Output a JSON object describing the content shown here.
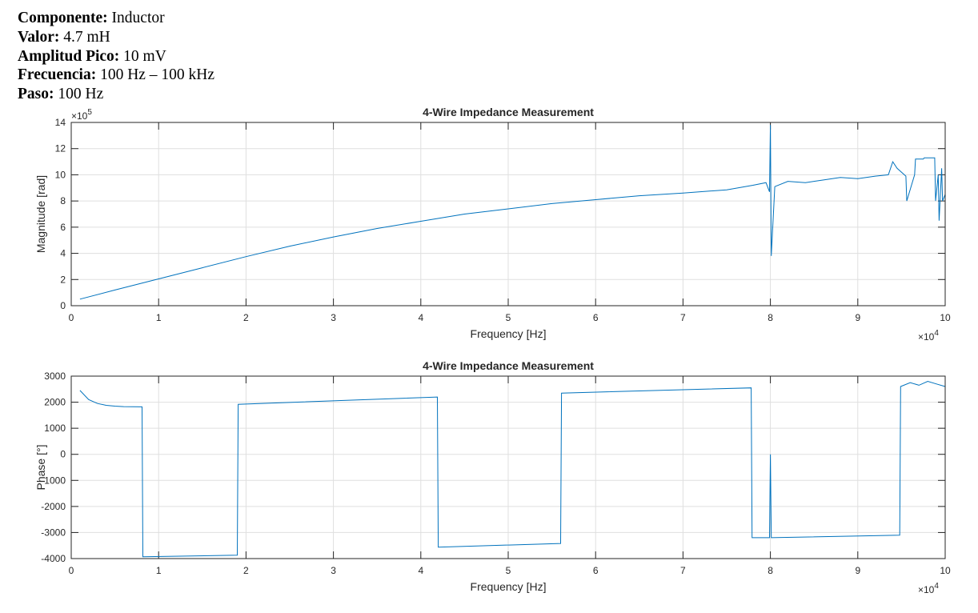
{
  "header": {
    "rows": [
      {
        "label": "Componente:",
        "value": "Inductor"
      },
      {
        "label": "Valor:",
        "value": "4.7 mH"
      },
      {
        "label": "Amplitud Pico:",
        "value": "10 mV"
      },
      {
        "label": "Frecuencia:",
        "value": "100 Hz – 100 kHz"
      },
      {
        "label": "Paso:",
        "value": "100 Hz"
      }
    ]
  },
  "chart_data": [
    {
      "type": "line",
      "title": "4-Wire Impedance Measurement",
      "xlabel": "Frequency [Hz]",
      "ylabel": "Magnitude [rad]",
      "x_multiplier": "×10",
      "x_multiplier_exp": "4",
      "y_multiplier": "×10",
      "y_multiplier_exp": "5",
      "xlim": [
        0,
        100000
      ],
      "ylim": [
        0,
        1400000
      ],
      "xticks": [
        0,
        10000,
        20000,
        30000,
        40000,
        50000,
        60000,
        70000,
        80000,
        90000,
        100000
      ],
      "xtick_labels": [
        "0",
        "1",
        "2",
        "3",
        "4",
        "5",
        "6",
        "7",
        "8",
        "9",
        "10"
      ],
      "yticks": [
        0,
        200000,
        400000,
        600000,
        800000,
        1000000,
        1200000,
        1400000
      ],
      "ytick_labels": [
        "0",
        "2",
        "4",
        "6",
        "8",
        "10",
        "12",
        "14"
      ],
      "grid": true,
      "color": "#0072BD",
      "series": [
        {
          "x": [
            1000,
            5000,
            10000,
            15000,
            20000,
            25000,
            30000,
            35000,
            40000,
            45000,
            50000,
            55000,
            60000,
            65000,
            70000,
            75000,
            78000,
            79500,
            79900,
            80000,
            80100,
            80500,
            82000,
            84000,
            86000,
            88000,
            90000,
            92000,
            93500,
            94000,
            94500,
            95500,
            95600,
            96500,
            96600,
            97500,
            97600,
            98800,
            98900,
            99200,
            99300,
            99600,
            99700,
            100000
          ],
          "y": [
            50000,
            120000,
            205000,
            290000,
            375000,
            455000,
            525000,
            590000,
            645000,
            700000,
            740000,
            780000,
            810000,
            840000,
            860000,
            885000,
            920000,
            940000,
            870000,
            1380000,
            380000,
            910000,
            950000,
            940000,
            960000,
            980000,
            970000,
            990000,
            1000000,
            1100000,
            1050000,
            990000,
            800000,
            1000000,
            1120000,
            1120000,
            1130000,
            1130000,
            800000,
            1000000,
            650000,
            1050000,
            800000,
            850000
          ]
        }
      ]
    },
    {
      "type": "line",
      "title": "4-Wire Impedance Measurement",
      "xlabel": "Frequency [Hz]",
      "ylabel": "Phase [°]",
      "x_multiplier": "×10",
      "x_multiplier_exp": "4",
      "xlim": [
        0,
        100000
      ],
      "ylim": [
        -4000,
        3000
      ],
      "xticks": [
        0,
        10000,
        20000,
        30000,
        40000,
        50000,
        60000,
        70000,
        80000,
        90000,
        100000
      ],
      "xtick_labels": [
        "0",
        "1",
        "2",
        "3",
        "4",
        "5",
        "6",
        "7",
        "8",
        "9",
        "10"
      ],
      "yticks": [
        -4000,
        -3000,
        -2000,
        -1000,
        0,
        1000,
        2000,
        3000
      ],
      "ytick_labels": [
        "-4000",
        "-3000",
        "-2000",
        "-1000",
        "0",
        "1000",
        "2000",
        "3000"
      ],
      "grid": true,
      "color": "#0072BD",
      "series": [
        {
          "x": [
            1000,
            2000,
            3000,
            4000,
            5000,
            6000,
            8100,
            8200,
            19000,
            19100,
            41900,
            42000,
            56000,
            56100,
            77800,
            77900,
            79900,
            80000,
            80100,
            94800,
            94900,
            96000,
            97000,
            98000,
            99000,
            100000
          ],
          "y": [
            2450,
            2100,
            1950,
            1880,
            1850,
            1830,
            1820,
            -3930,
            -3870,
            1920,
            2200,
            -3560,
            -3420,
            2350,
            2550,
            -3200,
            -3200,
            0,
            -3200,
            -3100,
            2600,
            2750,
            2650,
            2800,
            2700,
            2600
          ]
        }
      ]
    }
  ]
}
